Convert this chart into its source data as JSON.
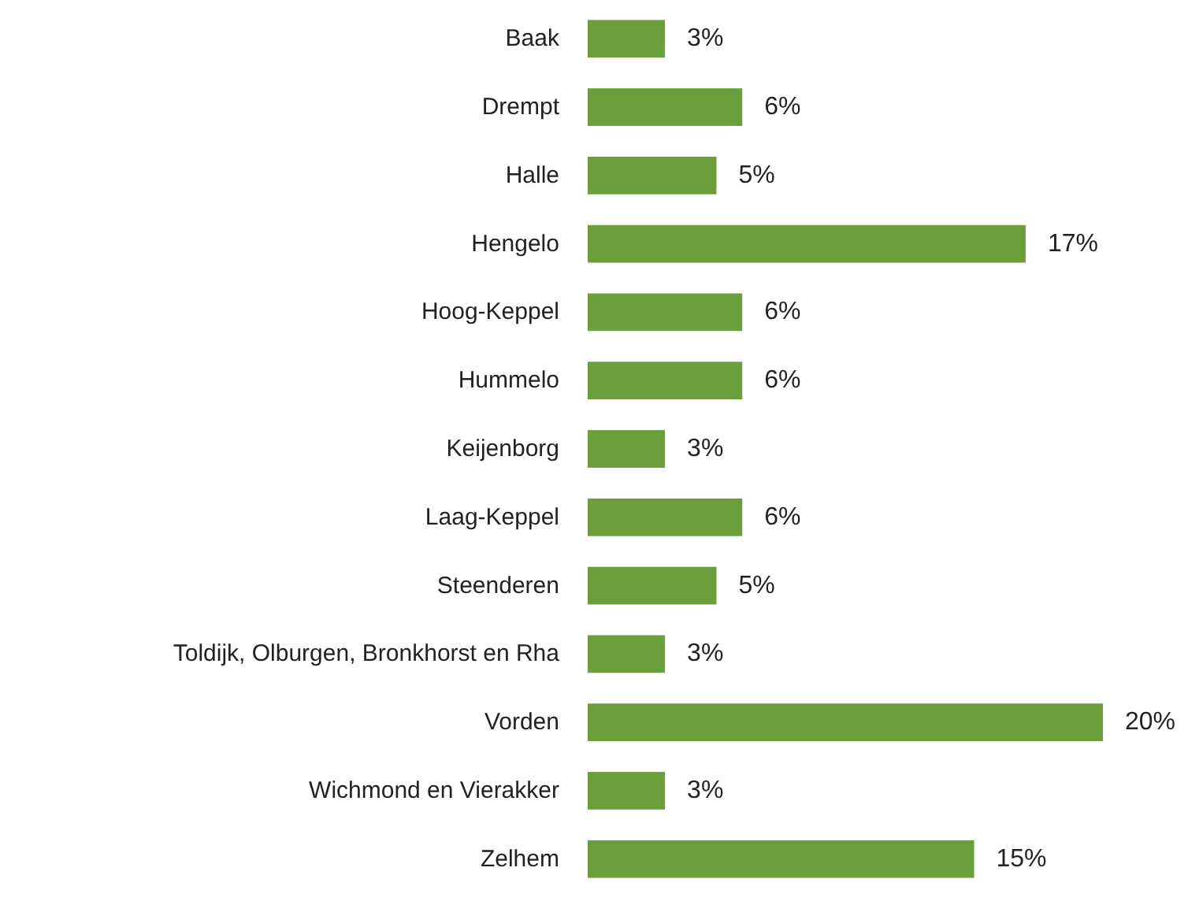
{
  "chart_data": {
    "type": "bar",
    "orientation": "horizontal",
    "categories": [
      "Baak",
      "Drempt",
      "Halle",
      "Hengelo",
      "Hoog-Keppel",
      "Hummelo",
      "Keijenborg",
      "Laag-Keppel",
      "Steenderen",
      "Toldijk, Olburgen, Bronkhorst en Rha",
      "Vorden",
      "Wichmond en Vierakker",
      "Zelhem"
    ],
    "values": [
      3,
      6,
      5,
      17,
      6,
      6,
      3,
      6,
      5,
      3,
      20,
      3,
      15
    ],
    "value_labels": [
      "3%",
      "6%",
      "5%",
      "17%",
      "6%",
      "6%",
      "3%",
      "6%",
      "5%",
      "3%",
      "20%",
      "3%",
      "15%"
    ],
    "color": "#6a9f3c"
  }
}
